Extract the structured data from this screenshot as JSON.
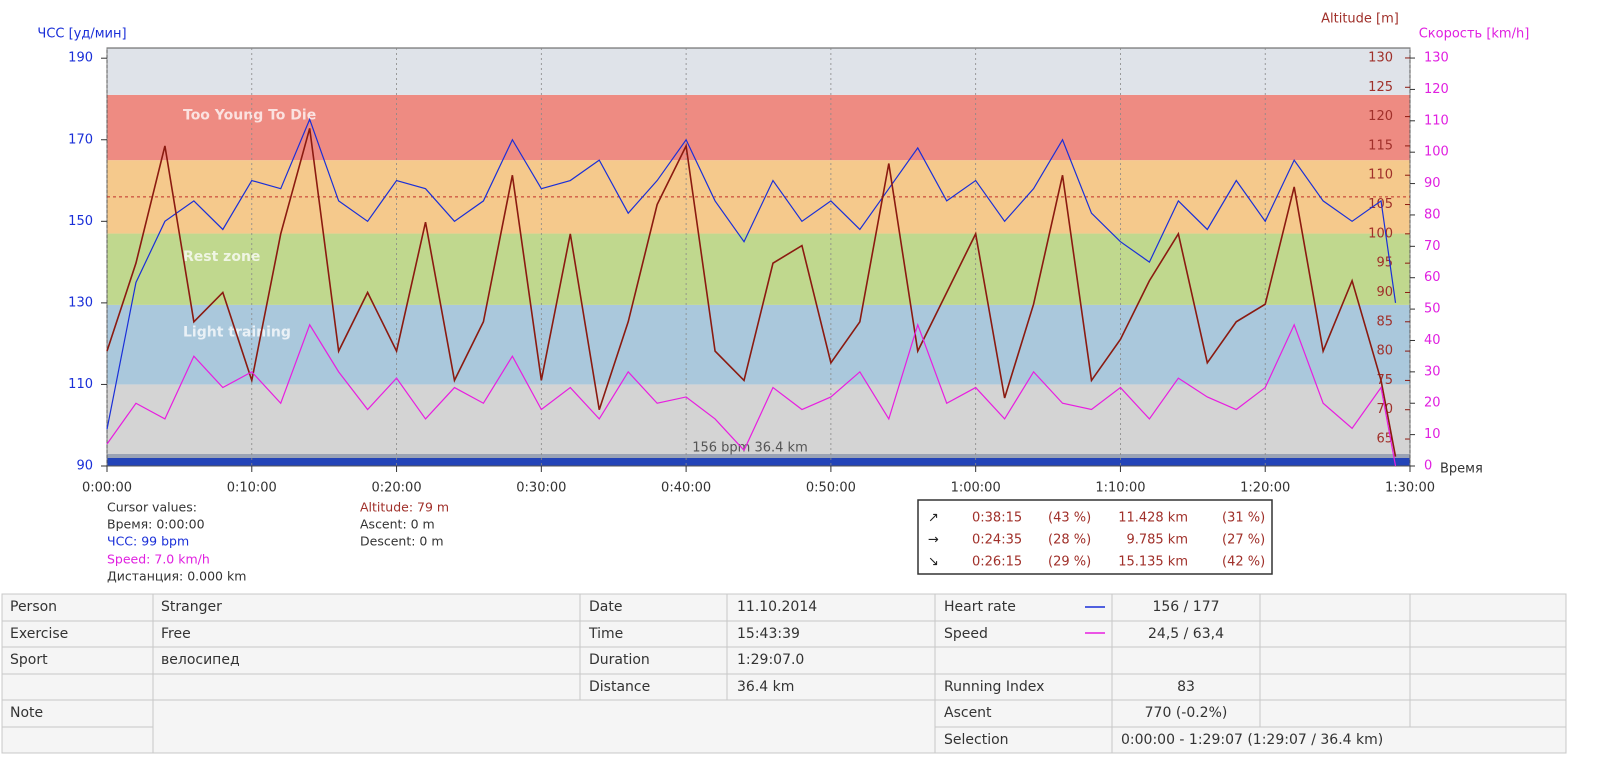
{
  "chart_data": {
    "type": "line",
    "ylabel": "ЧСС [уд/мин]",
    "y2label": "Altitude [m]",
    "y3label": "Скорость [km/h]",
    "xlabel": "Время",
    "xlim": [
      0,
      90
    ],
    "xticks": [
      {
        "value": 0,
        "label": "0:00:00"
      },
      {
        "value": 10,
        "label": "0:10:00"
      },
      {
        "value": 20,
        "label": "0:20:00"
      },
      {
        "value": 30,
        "label": "0:30:00"
      },
      {
        "value": 40,
        "label": "0:40:00"
      },
      {
        "value": 50,
        "label": "0:50:00"
      },
      {
        "value": 60,
        "label": "1:00:00"
      },
      {
        "value": 70,
        "label": "1:10:00"
      },
      {
        "value": 80,
        "label": "1:20:00"
      },
      {
        "value": 90,
        "label": "1:30:00"
      }
    ],
    "ylim": [
      90,
      192.5
    ],
    "yticks": [
      90,
      110,
      130,
      150,
      170,
      190
    ],
    "y2lim": [
      60.4,
      131.7
    ],
    "y2ticks": [
      65,
      70,
      75,
      80,
      85,
      90,
      95,
      100,
      105,
      110,
      115,
      120,
      125,
      130
    ],
    "y3lim": [
      0,
      133.2
    ],
    "y3ticks": [
      0,
      10,
      20,
      30,
      40,
      50,
      60,
      70,
      80,
      90,
      100,
      110,
      120,
      130
    ],
    "zones": [
      {
        "from": 90,
        "to": 110,
        "color": "#d4d4d4"
      },
      {
        "from": 110,
        "to": 129.5,
        "color": "#aac8dc",
        "name": "Light training"
      },
      {
        "from": 129.5,
        "to": 147,
        "color": "#c0d88e",
        "name": "Rest zone"
      },
      {
        "from": 147,
        "to": 165,
        "color": "#f5c98c"
      },
      {
        "from": 165,
        "to": 181,
        "color": "#ee8b82",
        "name": "Too Young To Die"
      },
      {
        "from": 181,
        "to": 192.5,
        "color": "#dfe3e9"
      }
    ],
    "avg_hr": 156,
    "footer_label": "156 bpm 36.4 km",
    "x": [
      0,
      2,
      4,
      6,
      8,
      10,
      12,
      14,
      16,
      18,
      20,
      22,
      24,
      26,
      28,
      30,
      32,
      34,
      36,
      38,
      40,
      42,
      44,
      46,
      48,
      50,
      52,
      54,
      56,
      58,
      60,
      62,
      64,
      66,
      68,
      70,
      72,
      74,
      76,
      78,
      80,
      82,
      84,
      86,
      88,
      89
    ],
    "series": [
      {
        "color": "#1a2fd8",
        "axis": "y",
        "values": [
          99,
          135,
          150,
          155,
          148,
          160,
          158,
          175,
          155,
          150,
          160,
          158,
          150,
          155,
          170,
          158,
          160,
          165,
          152,
          160,
          170,
          155,
          145,
          160,
          150,
          155,
          148,
          158,
          168,
          155,
          160,
          150,
          158,
          170,
          152,
          145,
          140,
          155,
          148,
          160,
          150,
          165,
          155,
          150,
          155,
          130
        ]
      },
      {
        "color": "#8b1a10",
        "axis": "y2",
        "values": [
          80,
          95,
          115,
          85,
          90,
          75,
          100,
          118,
          80,
          90,
          80,
          102,
          75,
          85,
          110,
          75,
          100,
          70,
          85,
          105,
          115,
          80,
          75,
          95,
          98,
          78,
          85,
          112,
          80,
          90,
          100,
          72,
          88,
          110,
          75,
          82,
          92,
          100,
          78,
          85,
          88,
          108,
          80,
          92,
          75,
          62
        ]
      },
      {
        "color": "#e81ee0",
        "axis": "y3",
        "values": [
          7,
          20,
          15,
          35,
          25,
          30,
          20,
          45,
          30,
          18,
          28,
          15,
          25,
          20,
          35,
          18,
          25,
          15,
          30,
          20,
          22,
          15,
          5,
          25,
          18,
          22,
          30,
          15,
          45,
          20,
          25,
          15,
          30,
          20,
          18,
          25,
          15,
          28,
          22,
          18,
          25,
          45,
          20,
          12,
          25,
          0
        ]
      }
    ]
  },
  "cursor_panel": {
    "title": "Cursor values:",
    "time": "Время: 0:00:00",
    "hr": "ЧСС: 99 bpm",
    "speed": "Speed: 7.0 km/h",
    "distance": "Дистанция: 0.000 km",
    "altitude": "Altitude: 79 m",
    "ascent": "Ascent: 0 m",
    "descent": "Descent: 0 m"
  },
  "summary_box": {
    "rows": [
      {
        "icon": "↗",
        "time": "0:38:15",
        "time_share": "(43 %)",
        "distance": "11.428 km",
        "distance_share": "(31 %)"
      },
      {
        "icon": "→",
        "time": "0:24:35",
        "time_share": "(28 %)",
        "distance": "9.785 km",
        "distance_share": "(27 %)"
      },
      {
        "icon": "↘",
        "time": "0:26:15",
        "time_share": "(29 %)",
        "distance": "15.135 km",
        "distance_share": "(42 %)"
      }
    ]
  },
  "info_table": {
    "person": [
      "Person",
      "Stranger"
    ],
    "exercise": [
      "Exercise",
      "Free"
    ],
    "sport": [
      "Sport",
      "велосипед"
    ],
    "note": "Note",
    "date": [
      "Date",
      "11.10.2014"
    ],
    "time": [
      "Time",
      "15:43:39"
    ],
    "duration": [
      "Duration",
      "1:29:07.0"
    ],
    "distance": [
      "Distance",
      "36.4 km"
    ],
    "heart_rate": [
      "Heart rate",
      "156 / 177"
    ],
    "speed": [
      "Speed",
      "24,5 / 63,4"
    ],
    "running_index": [
      "Running Index",
      "83"
    ],
    "ascent": [
      "Ascent",
      "770 (-0.2%)"
    ],
    "selection": [
      "Selection",
      "0:00:00 - 1:29:07 (1:29:07 / 36.4 km)"
    ]
  }
}
